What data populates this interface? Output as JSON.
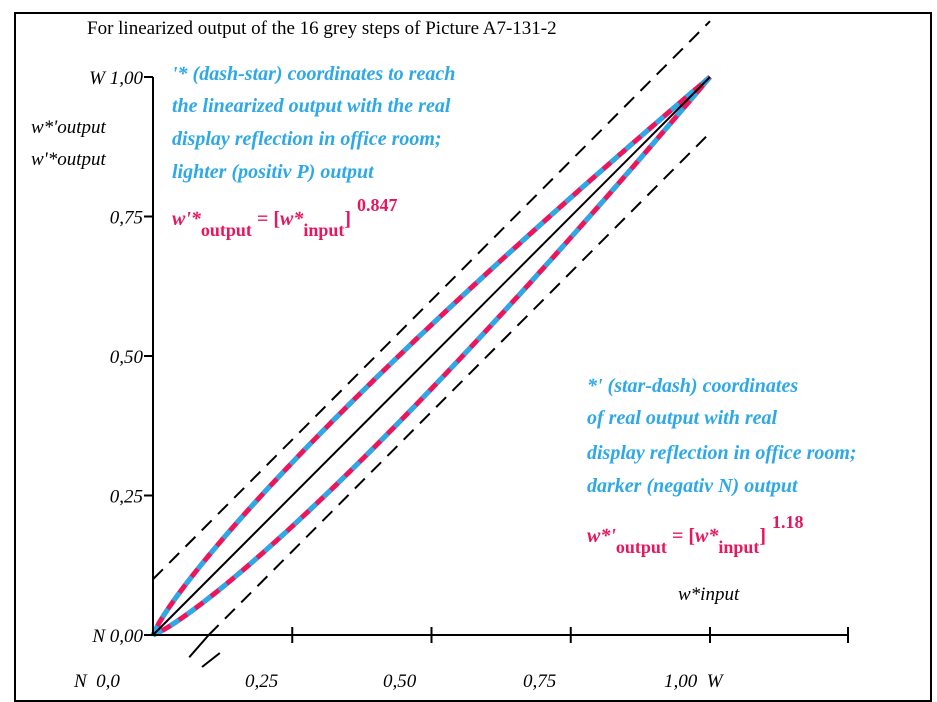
{
  "chart_data": {
    "type": "line",
    "title": "For linearized output of the 16 grey steps of Picture A7-131-2",
    "xlabel": "w*input",
    "ylabel_lines": [
      "w*'output",
      "w'*output"
    ],
    "x_range": [
      0,
      1
    ],
    "y_range": [
      0,
      1
    ],
    "x_ticks": [
      "N  0,0",
      "0,25",
      "0,50",
      "0,75",
      "1,00  W"
    ],
    "y_ticks": [
      "N 0,00",
      "0,25",
      "0,50",
      "0,75",
      "W 1,00"
    ],
    "series": [
      {
        "name": "w'*output (dash-star)",
        "exponent": 0.847,
        "colors": [
          "#e8175d",
          "#2ea8e6"
        ]
      },
      {
        "name": "w*'output (star-dash)",
        "exponent": 1.18,
        "colors": [
          "#e8175d",
          "#2ea8e6"
        ]
      },
      {
        "name": "linear",
        "exponent": 1.0,
        "color": "#000000"
      }
    ],
    "annotations": {
      "upper": [
        "'* (dash-star) coordinates to reach",
        "the linearized output with the real",
        "display reflection in office room;",
        "lighter (positiv P) output"
      ],
      "lower": [
        "*' (star-dash) coordinates",
        "of real output with real",
        "display reflection in office room;",
        "darker (negativ N) output"
      ]
    },
    "formula_upper": {
      "w": "w'*",
      "sub_out": "output",
      "eq": " = [",
      "w2": "w*",
      "sub_in": "input",
      "close": "]",
      "exp": "0.847"
    },
    "formula_lower": {
      "w": "w*'",
      "sub_out": "output",
      "eq": " = [",
      "w2": "w*",
      "sub_in": "input",
      "close": "]",
      "exp": "1.18"
    },
    "colors": {
      "magenta": "#e8175d",
      "cyan": "#2ea8e6",
      "black": "#000000"
    }
  }
}
